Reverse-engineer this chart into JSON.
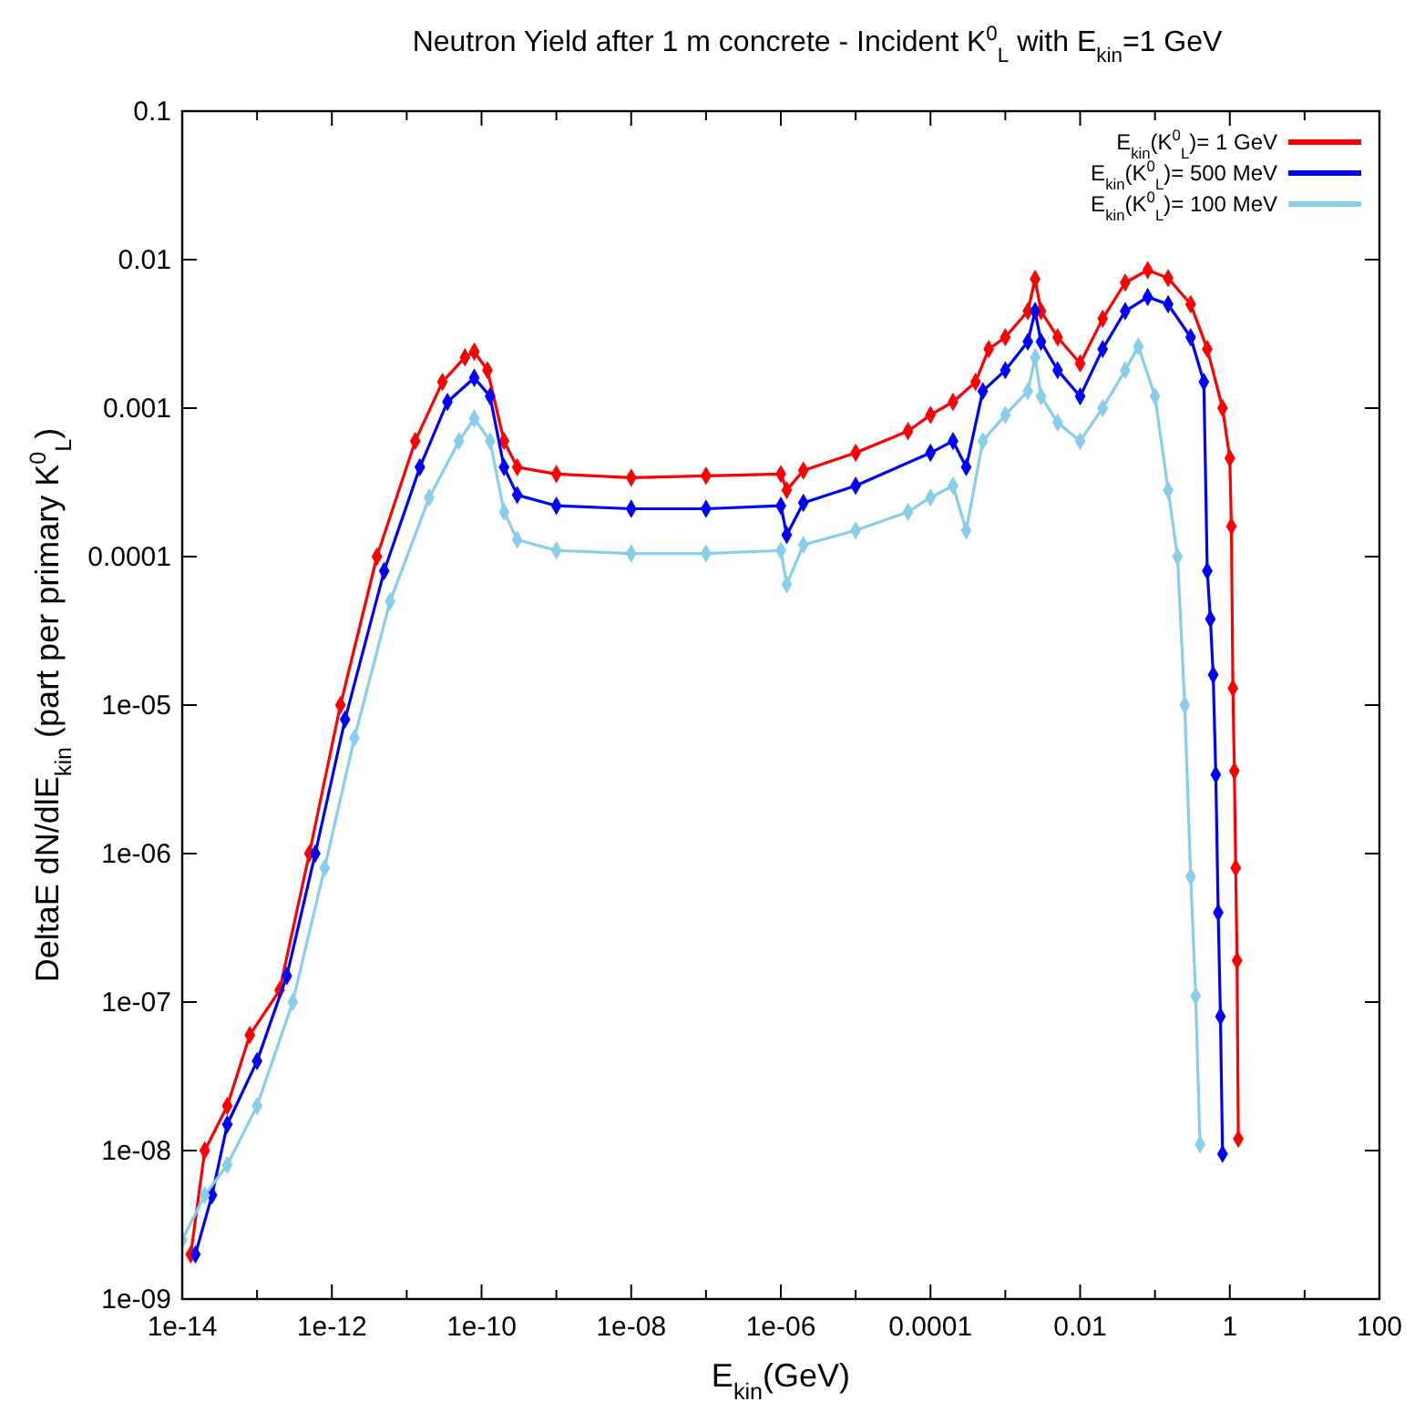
{
  "chart_data": {
    "type": "line",
    "title": "Neutron Yield after 1 m concrete - Incident K$^{0}$$_{L}$ with E$_{kin}$=1 GeV",
    "xlabel": "E$_{kin}$(GeV)",
    "ylabel": "DeltaE dN/dlE$_{kin}$ (part per primary K$^{0}$$_{L}$)",
    "log": "xy",
    "legend": "top right",
    "marker": "diamond",
    "line_style": "solid",
    "grid": false,
    "xlim": [
      1e-14,
      100
    ],
    "ylim": [
      1e-09,
      0.1
    ],
    "xticks": [
      {
        "value": 1e-14,
        "label": "1e-14"
      },
      {
        "value": 1e-13,
        "label": null
      },
      {
        "value": 1e-12,
        "label": "1e-12"
      },
      {
        "value": 1e-11,
        "label": null
      },
      {
        "value": 1e-10,
        "label": "1e-10"
      },
      {
        "value": 1e-09,
        "label": null
      },
      {
        "value": 1e-08,
        "label": "1e-08"
      },
      {
        "value": 1e-07,
        "label": null
      },
      {
        "value": 1e-06,
        "label": "1e-06"
      },
      {
        "value": 1e-05,
        "label": null
      },
      {
        "value": 0.0001,
        "label": "0.0001"
      },
      {
        "value": 0.001,
        "label": null
      },
      {
        "value": 0.01,
        "label": "0.01"
      },
      {
        "value": 0.1,
        "label": null
      },
      {
        "value": 1,
        "label": "1"
      },
      {
        "value": 10,
        "label": null
      },
      {
        "value": 100,
        "label": "100"
      }
    ],
    "yticks": [
      {
        "value": 1e-09,
        "label": "1e-09"
      },
      {
        "value": 1e-08,
        "label": "1e-08"
      },
      {
        "value": 1e-07,
        "label": "1e-07"
      },
      {
        "value": 1e-06,
        "label": "1e-06"
      },
      {
        "value": 1e-05,
        "label": "1e-05"
      },
      0.0001,
      0.001,
      0.01,
      0.1
    ],
    "series": [
      {
        "name": "E$_{kin}$(K$^{0}$$_{L}$)= 1 GeV",
        "color": "#ff0000",
        "x": [
          1.3e-14,
          2e-14,
          4e-14,
          8e-14,
          2e-13,
          5e-13,
          1.3e-12,
          4e-12,
          1.3e-11,
          3e-11,
          6e-11,
          8e-11,
          1.2e-10,
          2e-10,
          3e-10,
          1e-09,
          1e-08,
          1e-07,
          1e-06,
          1.2e-06,
          2e-06,
          1e-05,
          5e-05,
          0.0001,
          0.0002,
          0.0004,
          0.0006,
          0.001,
          0.002,
          0.0025,
          0.003,
          0.005,
          0.01,
          0.02,
          0.04,
          0.08,
          0.15,
          0.3,
          0.5,
          0.8,
          1.0,
          1.05,
          1.1,
          1.15,
          1.2,
          1.25,
          1.3
        ],
        "values": [
          2e-09,
          1e-08,
          2e-08,
          6e-08,
          1.2e-07,
          1e-06,
          1e-05,
          0.0001,
          0.0006,
          0.0015,
          0.0022,
          0.0024,
          0.0018,
          0.0006,
          0.0004,
          0.00036,
          0.00034,
          0.00035,
          0.00036,
          0.00028,
          0.00038,
          0.0005,
          0.0007,
          0.0009,
          0.0011,
          0.0015,
          0.0025,
          0.003,
          0.0045,
          0.0074,
          0.0045,
          0.003,
          0.002,
          0.004,
          0.007,
          0.0085,
          0.0075,
          0.005,
          0.0025,
          0.001,
          0.00046,
          0.00016,
          1.3e-05,
          3.6e-06,
          8e-07,
          1.9e-07,
          1.2e-08
        ]
      },
      {
        "name": "E$_{kin}$(K$^{0}$$_{L}$)= 500 MeV",
        "color": "#0000ff",
        "x": [
          1.5e-14,
          2.5e-14,
          4e-14,
          1e-13,
          2.5e-13,
          6e-13,
          1.5e-12,
          5e-12,
          1.5e-11,
          3.5e-11,
          8e-11,
          1.3e-10,
          2e-10,
          3e-10,
          1e-09,
          1e-08,
          1e-07,
          1e-06,
          1.2e-06,
          2e-06,
          1e-05,
          0.0001,
          0.0002,
          0.0003,
          0.0005,
          0.001,
          0.002,
          0.0025,
          0.003,
          0.005,
          0.01,
          0.02,
          0.04,
          0.08,
          0.15,
          0.3,
          0.45,
          0.5,
          0.55,
          0.6,
          0.65,
          0.7,
          0.75,
          0.8
        ],
        "values": [
          2e-09,
          5e-09,
          1.5e-08,
          4e-08,
          1.5e-07,
          1e-06,
          8e-06,
          8e-05,
          0.0004,
          0.0011,
          0.0016,
          0.0012,
          0.0004,
          0.00026,
          0.00022,
          0.00021,
          0.00021,
          0.00022,
          0.00014,
          0.00023,
          0.0003,
          0.0005,
          0.0006,
          0.0004,
          0.0013,
          0.0018,
          0.0028,
          0.0045,
          0.0028,
          0.0018,
          0.0012,
          0.0025,
          0.0045,
          0.0056,
          0.005,
          0.003,
          0.0015,
          8e-05,
          3.8e-05,
          1.6e-05,
          3.4e-06,
          4e-07,
          8e-08,
          9.5e-09
        ]
      },
      {
        "name": "E$_{kin}$(K$^{0}$$_{L}$)= 100 MeV",
        "color": "#87ceeb",
        "x": [
          1e-14,
          2e-14,
          4e-14,
          1e-13,
          3e-13,
          8e-13,
          2e-12,
          6e-12,
          2e-11,
          5e-11,
          8e-11,
          1.3e-10,
          2e-10,
          3e-10,
          1e-09,
          1e-08,
          1e-07,
          1e-06,
          1.2e-06,
          2e-06,
          1e-05,
          5e-05,
          0.0001,
          0.0002,
          0.0003,
          0.0005,
          0.001,
          0.002,
          0.0025,
          0.003,
          0.005,
          0.01,
          0.02,
          0.04,
          0.06,
          0.1,
          0.15,
          0.2,
          0.25,
          0.3,
          0.35,
          0.4
        ],
        "values": [
          2.5e-09,
          5e-09,
          8e-09,
          2e-08,
          1e-07,
          8e-07,
          6e-06,
          5e-05,
          0.00025,
          0.0006,
          0.00085,
          0.0006,
          0.0002,
          0.00013,
          0.00011,
          0.000105,
          0.000105,
          0.00011,
          6.5e-05,
          0.00012,
          0.00015,
          0.0002,
          0.00025,
          0.0003,
          0.00015,
          0.0006,
          0.0009,
          0.0013,
          0.0022,
          0.0012,
          0.0008,
          0.0006,
          0.001,
          0.0018,
          0.0026,
          0.0012,
          0.00028,
          0.0001,
          1e-05,
          7e-07,
          1.1e-07,
          1.1e-08
        ]
      }
    ]
  }
}
